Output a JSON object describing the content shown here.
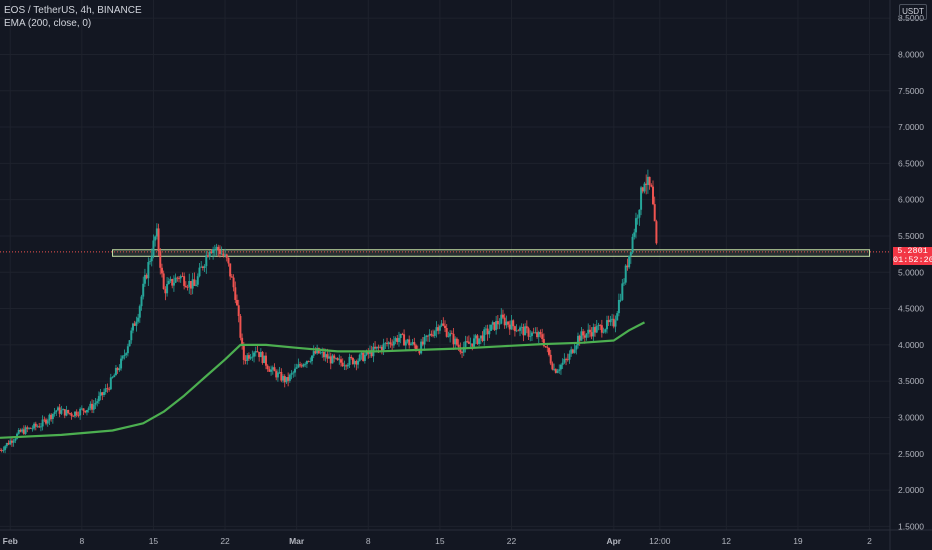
{
  "header": {
    "symbol_line": "EOS / TetherUS, 4h, BINANCE",
    "indicator_line": "EMA (200, close, 0)"
  },
  "currency_badge": "USDT",
  "last_price": {
    "value": "5.2801",
    "countdown": "01:52:20",
    "color": "#f23645"
  },
  "colors": {
    "background": "#131722",
    "grid": "#1e222d",
    "up": "#26a69a",
    "down": "#ef5350",
    "ema": "#4caf50",
    "zone": "#c5e1a5",
    "axis_text": "#b2b5be"
  },
  "chart_data": {
    "type": "candlestick",
    "symbol": "EOS / TetherUS",
    "interval": "4h",
    "exchange": "BINANCE",
    "y_ticks": [
      "8.5000",
      "8.0000",
      "7.5000",
      "7.0000",
      "6.5000",
      "6.0000",
      "5.5000",
      "5.0000",
      "4.5000",
      "4.0000",
      "3.5000",
      "3.0000",
      "2.5000",
      "2.0000",
      "1.5000"
    ],
    "y_tick_values": [
      8.5,
      8.0,
      7.5,
      7.0,
      6.5,
      6.0,
      5.5,
      5.0,
      4.5,
      4.0,
      3.5,
      3.0,
      2.5,
      2.0,
      1.5
    ],
    "ylim": [
      1.45,
      8.75
    ],
    "x_ticks": [
      "Feb",
      "8",
      "15",
      "22",
      "Mar",
      "8",
      "15",
      "22",
      "Apr",
      "12:00",
      "12",
      "19",
      "2"
    ],
    "x_tick_days": [
      0,
      7,
      14,
      21,
      28,
      35,
      42,
      49,
      59,
      63.5,
      70,
      77,
      84
    ],
    "xlim_days": [
      -1,
      86
    ],
    "resistance_zone": {
      "from": 5.22,
      "to": 5.31
    },
    "ema_label": "EMA (200, close, 0)",
    "ema_series": [
      [
        -1,
        2.72
      ],
      [
        5,
        2.76
      ],
      [
        10,
        2.82
      ],
      [
        13,
        2.92
      ],
      [
        15,
        3.08
      ],
      [
        17,
        3.3
      ],
      [
        19,
        3.55
      ],
      [
        21,
        3.8
      ],
      [
        22.5,
        4.0
      ],
      [
        25,
        4.0
      ],
      [
        28,
        3.96
      ],
      [
        32,
        3.91
      ],
      [
        36,
        3.91
      ],
      [
        40,
        3.93
      ],
      [
        44,
        3.95
      ],
      [
        48,
        3.98
      ],
      [
        52,
        4.01
      ],
      [
        56,
        4.03
      ],
      [
        59,
        4.06
      ],
      [
        60.5,
        4.2
      ],
      [
        62,
        4.31
      ]
    ],
    "price_path": [
      [
        -1,
        2.55
      ],
      [
        1,
        2.8
      ],
      [
        3,
        2.9
      ],
      [
        4.5,
        3.1
      ],
      [
        6,
        3.05
      ],
      [
        8,
        3.15
      ],
      [
        9.5,
        3.4
      ],
      [
        11,
        3.8
      ],
      [
        12.5,
        4.45
      ],
      [
        13.5,
        5.1
      ],
      [
        14.3,
        5.55
      ],
      [
        15,
        4.75
      ],
      [
        16.5,
        4.95
      ],
      [
        18,
        4.8
      ],
      [
        19.5,
        5.35
      ],
      [
        20.5,
        5.3
      ],
      [
        21.2,
        5.15
      ],
      [
        22,
        4.7
      ],
      [
        22.8,
        3.8
      ],
      [
        24,
        3.95
      ],
      [
        25.5,
        3.65
      ],
      [
        27,
        3.5
      ],
      [
        28.5,
        3.75
      ],
      [
        30,
        3.9
      ],
      [
        32,
        3.75
      ],
      [
        34,
        3.8
      ],
      [
        36,
        3.95
      ],
      [
        38,
        4.1
      ],
      [
        40,
        3.95
      ],
      [
        42,
        4.3
      ],
      [
        44,
        3.95
      ],
      [
        46,
        4.1
      ],
      [
        48,
        4.35
      ],
      [
        50,
        4.2
      ],
      [
        52,
        4.1
      ],
      [
        53.2,
        3.65
      ],
      [
        54.5,
        3.8
      ],
      [
        55.5,
        4.1
      ],
      [
        57,
        4.2
      ],
      [
        59,
        4.3
      ],
      [
        60,
        4.9
      ],
      [
        61,
        5.6
      ],
      [
        62,
        6.3
      ],
      [
        62.7,
        6.1
      ],
      [
        63.2,
        5.28
      ]
    ]
  }
}
